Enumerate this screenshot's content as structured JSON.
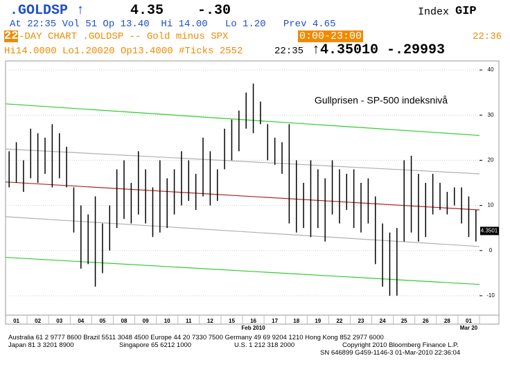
{
  "header": {
    "ticker": ".GOLDSP ↑",
    "last": "4.35",
    "change": "-.30",
    "index_word": "Index",
    "index_code": "GIP",
    "quote_line": "At 22:35 Vol 51 Op 13.40  Hi 14.00   Lo 1.20   Prev 4.65",
    "days": "22",
    "chart_name": "-DAY CHART .GOLDSP -- Gold minus SPX",
    "start_time": "0:00",
    "end_time": "23:00",
    "clock": "22:36",
    "stats": "Hi14.0000 Lo1.20020 Op13.4000 #Ticks 2552",
    "stats_time": "22:35",
    "big_last": "↑4.35010 -.29993"
  },
  "chart_data": {
    "type": "ohlc",
    "title": "Gullprisen - SP-500 indeksnivå",
    "categories": [
      "01",
      "02",
      "03",
      "04",
      "05",
      "08",
      "09",
      "10",
      "11",
      "12",
      "15",
      "16",
      "17",
      "18",
      "19",
      "22",
      "23",
      "24",
      "25",
      "26",
      "28",
      "01"
    ],
    "period_labels": [
      {
        "slot": 11,
        "label": "Feb 2010"
      },
      {
        "slot": 21,
        "label": "Mar 20"
      }
    ],
    "high": [
      22,
      24,
      20,
      27,
      26,
      25,
      28,
      26,
      23,
      14,
      10,
      8,
      12,
      6,
      10,
      18,
      20,
      15,
      22,
      18,
      14,
      20,
      16,
      18,
      22,
      20,
      17,
      25,
      22,
      18,
      27,
      29,
      31,
      35,
      37,
      33,
      28,
      25,
      24,
      28,
      20,
      15,
      20,
      18,
      16,
      20,
      18,
      17,
      18,
      15,
      16,
      12,
      6,
      4,
      5,
      20,
      21,
      17,
      15,
      17,
      15,
      13,
      14,
      14,
      12,
      9
    ],
    "low": [
      14,
      15,
      13,
      16,
      15,
      17,
      14,
      16,
      14,
      4,
      -4,
      -3,
      -8,
      -5,
      0,
      5,
      7,
      6,
      8,
      6,
      3,
      4,
      5,
      8,
      10,
      11,
      9,
      12,
      10,
      11,
      18,
      20,
      22,
      27,
      26,
      28,
      20,
      19,
      17,
      6,
      4,
      5,
      3,
      5,
      2,
      8,
      6,
      9,
      5,
      4,
      6,
      -3,
      -8,
      -10,
      -10,
      2,
      4,
      2,
      3,
      8,
      9,
      8,
      10,
      6,
      3,
      2
    ],
    "bar_color": "#000000",
    "last_price": 4.3501,
    "lines": [
      {
        "color": "#2ecc2e",
        "values": [
          32.5,
          25.5
        ]
      },
      {
        "color": "#b0b0b0",
        "values": [
          22.5,
          17
        ]
      },
      {
        "color": "#b22222",
        "values": [
          15.2,
          9
        ]
      },
      {
        "color": "#b0b0b0",
        "values": [
          7.5,
          0.9
        ]
      },
      {
        "color": "#2ecc2e",
        "values": [
          -1.5,
          -7.5
        ]
      }
    ],
    "ylim": [
      -14.3,
      42
    ],
    "yticks": [
      -10,
      0,
      10,
      20,
      30,
      40
    ],
    "grid": true
  },
  "footer": {
    "line1": "Australia 61 2 9777 8600 Brazil 5511 3048 4500 Europe 44 20 7330 7500 Germany 49 69 9204 1210 Hong Kong 852 2977 6000",
    "japan": "Japan 81 3 3201 8900",
    "singapore": "Singapore 65 6212 1000",
    "us": "U.S. 1 212 318 2000",
    "copyright": "Copyright 2010 Bloomberg Finance L.P.",
    "sn": "SN 646899 G459-1146-3 01-Mar-2010 22:36:04"
  }
}
